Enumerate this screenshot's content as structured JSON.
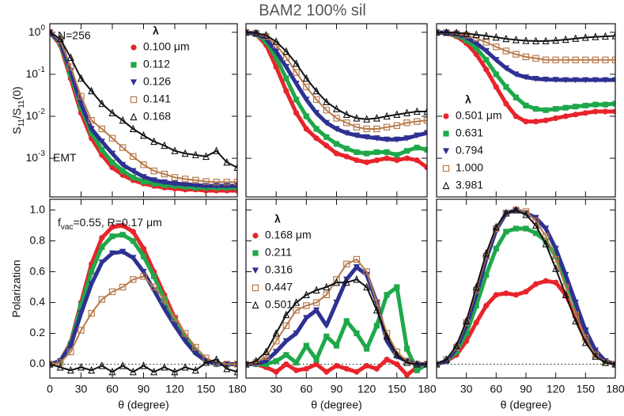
{
  "title": "BAM2 100% sil",
  "chart_data": [
    {
      "type": "line",
      "log_y": true,
      "x": [
        0,
        10,
        20,
        30,
        40,
        50,
        60,
        70,
        80,
        90,
        100,
        110,
        120,
        130,
        140,
        150,
        160,
        170,
        180
      ],
      "xlim": [
        0,
        180
      ],
      "xticks": [
        0,
        30,
        60,
        90,
        120,
        150,
        180
      ],
      "show_xtick_labels": false,
      "ylim": [
        0.00012,
        1.6
      ],
      "yticks": [
        {
          "value": 1,
          "label": [
            "10",
            "0"
          ]
        },
        {
          "value": 0.1,
          "label": [
            "10",
            "-1"
          ]
        },
        {
          "value": 0.01,
          "label": [
            "10",
            "-2"
          ]
        },
        {
          "value": 0.001,
          "label": [
            "10",
            "-3"
          ]
        }
      ],
      "ylabel": [
        "S",
        "11",
        "/S",
        "11",
        "(0)"
      ],
      "annotations": [
        "N=256",
        "EMT"
      ],
      "legend_title": "λ",
      "legend": "upper right",
      "series": [
        {
          "name": "0.100 μm",
          "color": "#e8242b",
          "marker": "circle",
          "values": [
            1,
            0.5,
            0.08,
            0.012,
            0.003,
            0.0012,
            0.0006,
            0.0004,
            0.0003,
            0.00025,
            0.00022,
            0.0002,
            0.00019,
            0.00018,
            0.00018,
            0.00017,
            0.00017,
            0.00017,
            0.00017
          ]
        },
        {
          "name": "0.112",
          "color": "#1fa84a",
          "marker": "square",
          "values": [
            1,
            0.55,
            0.1,
            0.016,
            0.004,
            0.0016,
            0.0008,
            0.0005,
            0.00035,
            0.00028,
            0.00025,
            0.00023,
            0.00022,
            0.00021,
            0.0002,
            0.0002,
            0.0002,
            0.0002,
            0.0002
          ]
        },
        {
          "name": "0.126",
          "color": "#2e3192",
          "marker": "triangle-down",
          "values": [
            1,
            0.6,
            0.12,
            0.02,
            0.005,
            0.0025,
            0.0013,
            0.0007,
            0.0005,
            0.00036,
            0.0003,
            0.00027,
            0.00025,
            0.00024,
            0.00023,
            0.00022,
            0.00022,
            0.00022,
            0.00022
          ]
        },
        {
          "name": "0.141",
          "color": "#b87a4b",
          "marker": "square-open",
          "values": [
            1,
            0.65,
            0.15,
            0.03,
            0.008,
            0.005,
            0.003,
            0.0018,
            0.0011,
            0.0007,
            0.0005,
            0.00042,
            0.00035,
            0.00032,
            0.0003,
            0.00028,
            0.00027,
            0.00027,
            0.00027
          ]
        },
        {
          "name": "0.168",
          "color": "#111111",
          "marker": "triangle-open",
          "values": [
            1,
            0.7,
            0.25,
            0.08,
            0.04,
            0.02,
            0.012,
            0.008,
            0.005,
            0.0035,
            0.0025,
            0.002,
            0.0015,
            0.0013,
            0.0012,
            0.0011,
            0.0015,
            0.0008,
            0.0006
          ]
        }
      ]
    },
    {
      "type": "line",
      "log_y": true,
      "x": [
        0,
        10,
        20,
        30,
        40,
        50,
        60,
        70,
        80,
        90,
        100,
        110,
        120,
        130,
        140,
        150,
        160,
        170,
        180
      ],
      "xlim": [
        0,
        180
      ],
      "xticks": [
        0,
        30,
        60,
        90,
        120,
        150,
        180
      ],
      "show_xtick_labels": false,
      "ylim": [
        0.00012,
        1.6
      ],
      "yticks": [
        1,
        0.1,
        0.01,
        0.001
      ],
      "show_ytick_labels": false,
      "series": [
        {
          "color": "#e8242b",
          "marker": "circle",
          "values": [
            1,
            0.9,
            0.5,
            0.15,
            0.04,
            0.012,
            0.005,
            0.003,
            0.002,
            0.0013,
            0.0011,
            0.0009,
            0.0008,
            0.0009,
            0.001,
            0.0009,
            0.001,
            0.0009,
            0.0006
          ]
        },
        {
          "color": "#1fa84a",
          "marker": "square",
          "values": [
            1,
            0.9,
            0.6,
            0.25,
            0.08,
            0.025,
            0.01,
            0.005,
            0.0032,
            0.0022,
            0.0017,
            0.0014,
            0.0013,
            0.0014,
            0.0014,
            0.0012,
            0.0015,
            0.0018,
            0.0016
          ]
        },
        {
          "color": "#2e3192",
          "marker": "triangle-down",
          "values": [
            1,
            0.93,
            0.7,
            0.35,
            0.15,
            0.06,
            0.025,
            0.012,
            0.007,
            0.005,
            0.004,
            0.0035,
            0.0032,
            0.003,
            0.0028,
            0.0028,
            0.003,
            0.0035,
            0.004
          ]
        },
        {
          "color": "#b87a4b",
          "marker": "square-open",
          "values": [
            1,
            0.95,
            0.8,
            0.5,
            0.25,
            0.11,
            0.05,
            0.025,
            0.014,
            0.009,
            0.007,
            0.0055,
            0.005,
            0.005,
            0.0055,
            0.006,
            0.007,
            0.0075,
            0.008
          ]
        },
        {
          "color": "#111111",
          "marker": "triangle-open",
          "values": [
            1,
            0.96,
            0.85,
            0.6,
            0.35,
            0.18,
            0.08,
            0.04,
            0.022,
            0.015,
            0.011,
            0.009,
            0.0085,
            0.009,
            0.01,
            0.011,
            0.012,
            0.013,
            0.013
          ]
        }
      ]
    },
    {
      "type": "line",
      "log_y": true,
      "x": [
        0,
        10,
        20,
        30,
        40,
        50,
        60,
        70,
        80,
        90,
        100,
        110,
        120,
        130,
        140,
        150,
        160,
        170,
        180
      ],
      "xlim": [
        0,
        180
      ],
      "xticks": [
        0,
        30,
        60,
        90,
        120,
        150,
        180
      ],
      "show_xtick_labels": false,
      "ylim": [
        0.00012,
        1.6
      ],
      "yticks": [
        1,
        0.1,
        0.01,
        0.001
      ],
      "show_ytick_labels": false,
      "legend_title": "λ",
      "legend": "lower left",
      "series": [
        {
          "name": "0.501 μm",
          "color": "#e8242b",
          "marker": "circle",
          "values": [
            1,
            0.95,
            0.8,
            0.55,
            0.3,
            0.13,
            0.05,
            0.02,
            0.01,
            0.0075,
            0.0075,
            0.008,
            0.009,
            0.01,
            0.011,
            0.012,
            0.013,
            0.013,
            0.013
          ]
        },
        {
          "name": "0.631",
          "color": "#1fa84a",
          "marker": "square",
          "values": [
            1,
            0.96,
            0.85,
            0.65,
            0.42,
            0.22,
            0.1,
            0.05,
            0.028,
            0.018,
            0.015,
            0.014,
            0.015,
            0.016,
            0.017,
            0.018,
            0.019,
            0.019,
            0.02
          ]
        },
        {
          "name": "0.794",
          "color": "#2e3192",
          "marker": "triangle-down",
          "values": [
            1,
            0.97,
            0.9,
            0.75,
            0.55,
            0.36,
            0.22,
            0.14,
            0.1,
            0.085,
            0.078,
            0.075,
            0.074,
            0.073,
            0.073,
            0.073,
            0.073,
            0.073,
            0.073
          ]
        },
        {
          "name": "1.000",
          "color": "#b87a4b",
          "marker": "square-open",
          "values": [
            1,
            0.98,
            0.93,
            0.85,
            0.72,
            0.58,
            0.45,
            0.36,
            0.3,
            0.26,
            0.24,
            0.22,
            0.22,
            0.22,
            0.22,
            0.22,
            0.22,
            0.22,
            0.22
          ]
        },
        {
          "name": "3.981",
          "color": "#111111",
          "marker": "triangle-open",
          "values": [
            1,
            0.99,
            0.97,
            0.93,
            0.88,
            0.82,
            0.76,
            0.7,
            0.66,
            0.63,
            0.62,
            0.62,
            0.64,
            0.67,
            0.71,
            0.75,
            0.78,
            0.8,
            0.82
          ]
        }
      ]
    },
    {
      "type": "line",
      "x": [
        0,
        10,
        20,
        30,
        40,
        50,
        60,
        70,
        80,
        90,
        100,
        110,
        120,
        130,
        140,
        150,
        160,
        170,
        180
      ],
      "xlim": [
        0,
        180
      ],
      "xticks": [
        0,
        30,
        60,
        90,
        120,
        150,
        180
      ],
      "xlabel": "θ (degree)",
      "ylim": [
        -0.09,
        1.07
      ],
      "yticks": [
        {
          "value": 0,
          "label": "0.0"
        },
        {
          "value": 0.2,
          "label": "0.2"
        },
        {
          "value": 0.4,
          "label": "0.4"
        },
        {
          "value": 0.6,
          "label": "0.6"
        },
        {
          "value": 0.8,
          "label": "0.8"
        },
        {
          "value": 1,
          "label": "1.0"
        }
      ],
      "ylabel": "Polarization",
      "zero_line": true,
      "annotations": [
        [
          "f",
          "vac",
          "=0.55, R=0.17 μm"
        ]
      ],
      "series": [
        {
          "color": "#e8242b",
          "marker": "circle",
          "values": [
            0,
            0.02,
            0.14,
            0.4,
            0.65,
            0.82,
            0.89,
            0.9,
            0.86,
            0.75,
            0.6,
            0.45,
            0.3,
            0.18,
            0.08,
            0.02,
            0,
            0,
            0
          ]
        },
        {
          "color": "#1fa84a",
          "marker": "square",
          "values": [
            0,
            0.02,
            0.13,
            0.38,
            0.6,
            0.76,
            0.83,
            0.84,
            0.8,
            0.7,
            0.57,
            0.42,
            0.28,
            0.17,
            0.08,
            0.02,
            0,
            0,
            0
          ]
        },
        {
          "color": "#2e3192",
          "marker": "triangle-down",
          "values": [
            0,
            0.02,
            0.12,
            0.33,
            0.52,
            0.66,
            0.72,
            0.73,
            0.69,
            0.6,
            0.48,
            0.36,
            0.25,
            0.15,
            0.07,
            0.02,
            0,
            0,
            0
          ]
        },
        {
          "color": "#b87a4b",
          "marker": "square-open",
          "values": [
            0,
            0.01,
            0.08,
            0.22,
            0.33,
            0.42,
            0.47,
            0.5,
            0.55,
            0.57,
            0.5,
            0.42,
            0.3,
            0.2,
            0.11,
            0.04,
            0.01,
            0,
            0
          ]
        },
        {
          "color": "#111111",
          "marker": "triangle-open",
          "values": [
            0,
            -0.02,
            -0.04,
            -0.02,
            -0.04,
            -0.01,
            -0.05,
            -0.01,
            -0.05,
            -0.01,
            -0.05,
            -0.02,
            -0.05,
            -0.02,
            -0.04,
            0.01,
            0.03,
            -0.03,
            -0.05
          ]
        }
      ]
    },
    {
      "type": "line",
      "x": [
        0,
        10,
        20,
        30,
        40,
        50,
        60,
        70,
        80,
        90,
        100,
        110,
        120,
        130,
        140,
        150,
        160,
        170,
        180
      ],
      "xlim": [
        0,
        180
      ],
      "xticks": [
        30,
        60,
        90,
        120,
        150,
        180
      ],
      "xlabel": "θ (degree)",
      "ylim": [
        -0.09,
        1.07
      ],
      "yticks": [
        0,
        0.2,
        0.4,
        0.6,
        0.8,
        1
      ],
      "show_ytick_labels": false,
      "zero_line": true,
      "legend_title": "λ",
      "legend": "upper left",
      "series": [
        {
          "name": "0.168 μm",
          "color": "#e8242b",
          "marker": "circle",
          "values": [
            0,
            0,
            -0.02,
            -0.05,
            0,
            -0.04,
            -0.03,
            0,
            -0.05,
            -0.01,
            -0.03,
            -0.05,
            -0.01,
            -0.03,
            0.03,
            0,
            -0.07,
            -0.02,
            0
          ]
        },
        {
          "name": "0.211",
          "color": "#1fa84a",
          "marker": "square",
          "values": [
            0,
            0,
            0,
            0.02,
            0.06,
            0.01,
            0.12,
            0.03,
            0.18,
            0.12,
            0.28,
            0.2,
            0.1,
            0.25,
            0.45,
            0.5,
            0.1,
            -0.04,
            0
          ]
        },
        {
          "name": "0.316",
          "color": "#2e3192",
          "marker": "triangle-down",
          "values": [
            0,
            0,
            0.02,
            0.08,
            0.15,
            0.2,
            0.3,
            0.35,
            0.25,
            0.4,
            0.55,
            0.63,
            0.58,
            0.4,
            0.15,
            0.05,
            0.02,
            0,
            0
          ]
        },
        {
          "name": "0.447",
          "color": "#b87a4b",
          "marker": "square-open",
          "values": [
            0,
            0.01,
            0.05,
            0.15,
            0.25,
            0.35,
            0.38,
            0.4,
            0.45,
            0.55,
            0.65,
            0.68,
            0.6,
            0.4,
            0.2,
            0.08,
            0.02,
            0,
            0
          ]
        },
        {
          "name": "0.501",
          "color": "#111111",
          "marker": "triangle-open",
          "values": [
            0,
            0.02,
            0.08,
            0.2,
            0.32,
            0.4,
            0.45,
            0.48,
            0.5,
            0.53,
            0.53,
            0.55,
            0.5,
            0.35,
            0.18,
            0.06,
            0.01,
            0,
            0
          ]
        }
      ]
    },
    {
      "type": "line",
      "x": [
        0,
        10,
        20,
        30,
        40,
        50,
        60,
        70,
        80,
        90,
        100,
        110,
        120,
        130,
        140,
        150,
        160,
        170,
        180
      ],
      "xlim": [
        0,
        180
      ],
      "xticks": [
        30,
        60,
        90,
        120,
        150,
        180
      ],
      "xlabel": "θ (degree)",
      "ylim": [
        -0.09,
        1.07
      ],
      "yticks": [
        0,
        0.2,
        0.4,
        0.6,
        0.8,
        1
      ],
      "show_ytick_labels": false,
      "zero_line": true,
      "series": [
        {
          "color": "#e8242b",
          "marker": "circle",
          "values": [
            0,
            0.02,
            0.06,
            0.15,
            0.27,
            0.38,
            0.45,
            0.46,
            0.45,
            0.47,
            0.52,
            0.54,
            0.53,
            0.45,
            0.32,
            0.18,
            0.07,
            0.02,
            0
          ]
        },
        {
          "color": "#1fa84a",
          "marker": "square",
          "values": [
            0,
            0.02,
            0.08,
            0.2,
            0.38,
            0.58,
            0.75,
            0.86,
            0.88,
            0.88,
            0.85,
            0.8,
            0.7,
            0.55,
            0.38,
            0.22,
            0.08,
            0.02,
            0
          ]
        },
        {
          "color": "#2e3192",
          "marker": "triangle-down",
          "values": [
            0,
            0.02,
            0.1,
            0.25,
            0.45,
            0.68,
            0.87,
            0.98,
            1,
            0.98,
            0.95,
            0.88,
            0.75,
            0.58,
            0.4,
            0.22,
            0.09,
            0.02,
            0
          ]
        },
        {
          "color": "#b87a4b",
          "marker": "square-open",
          "values": [
            0,
            0.03,
            0.11,
            0.27,
            0.48,
            0.7,
            0.88,
            0.98,
            1,
            0.99,
            0.93,
            0.83,
            0.68,
            0.5,
            0.32,
            0.17,
            0.06,
            0.01,
            0
          ]
        },
        {
          "color": "#111111",
          "marker": "triangle-open",
          "values": [
            0,
            0.03,
            0.12,
            0.28,
            0.5,
            0.72,
            0.89,
            0.98,
            1,
            0.97,
            0.9,
            0.78,
            0.62,
            0.45,
            0.28,
            0.14,
            0.05,
            0.01,
            0
          ]
        }
      ]
    }
  ]
}
